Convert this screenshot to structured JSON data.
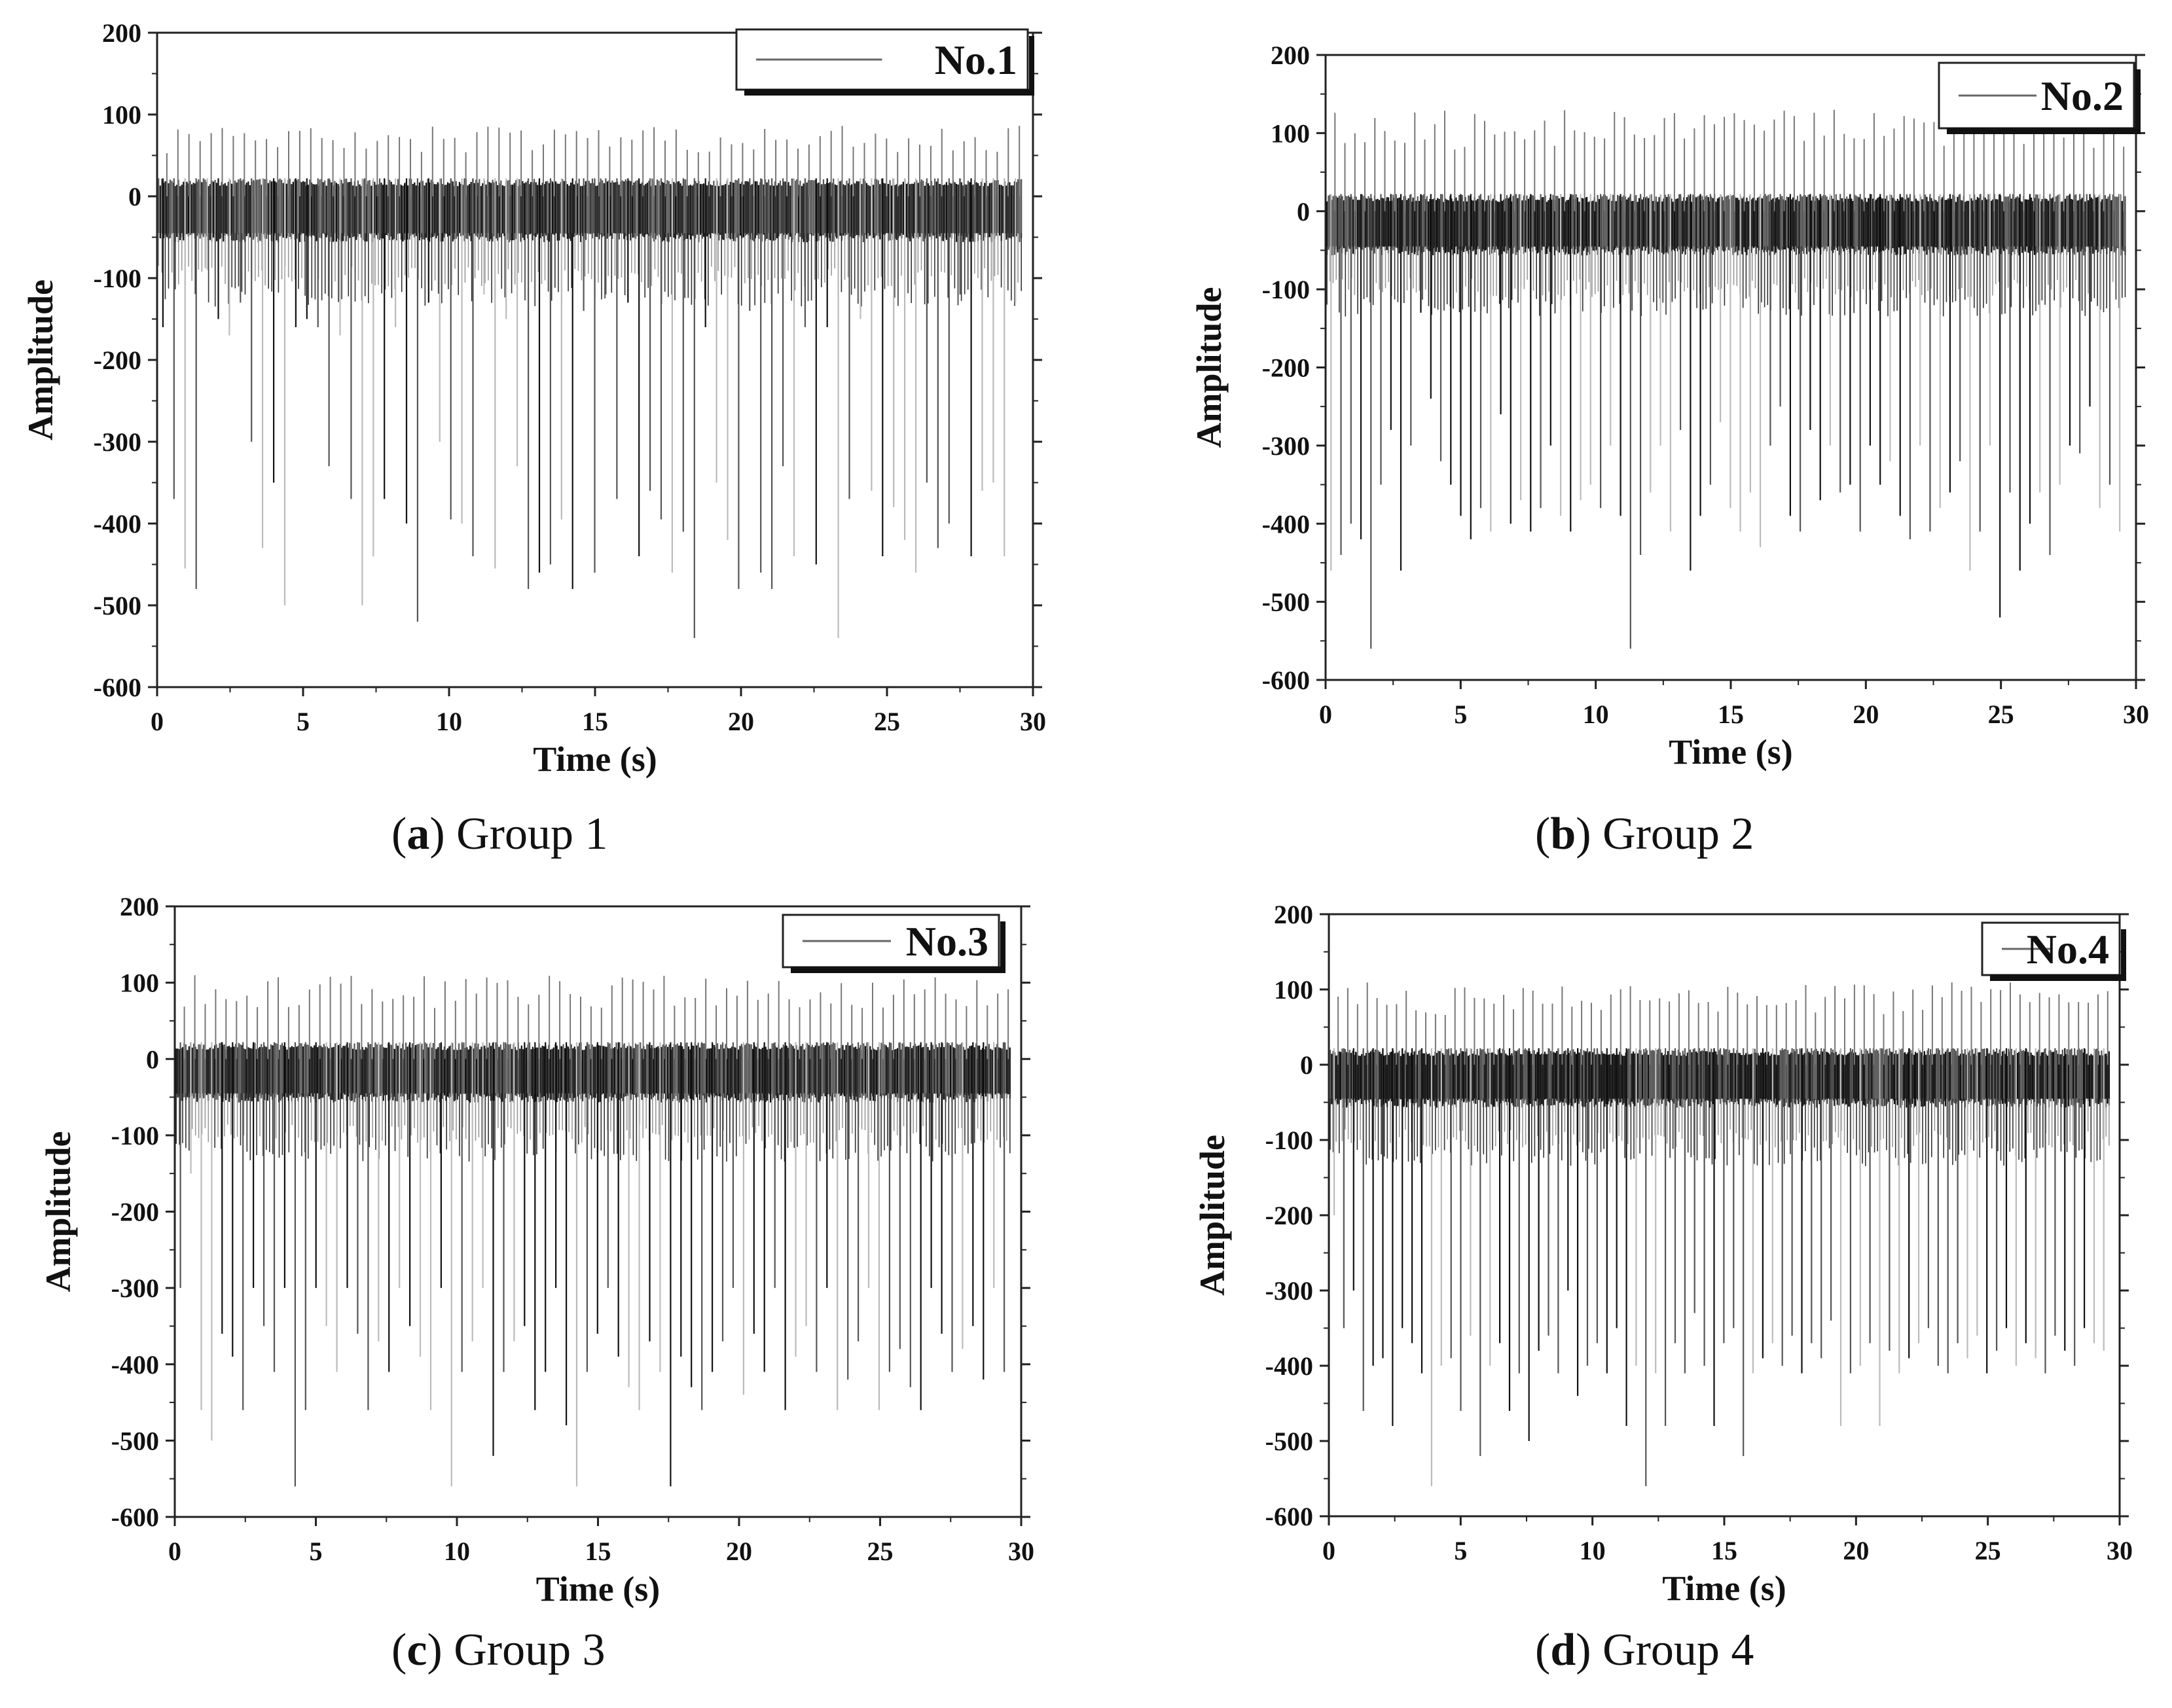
{
  "figure": {
    "panels": [
      {
        "id": "a",
        "caption_letter": "a",
        "caption_text": "Group 1",
        "chart_data": {
          "type": "line",
          "title": "",
          "legend": "No.1",
          "legend_position": "top-right",
          "xlabel": "Time (s)",
          "ylabel": "Amplitude",
          "xlim": [
            0,
            30
          ],
          "ylim": [
            -600,
            200
          ],
          "xticks": [
            "0",
            "5",
            "10",
            "15",
            "20",
            "25",
            "30"
          ],
          "yticks": [
            "200",
            "100",
            "0",
            "-100",
            "-200",
            "-300",
            "-400",
            "-500",
            "-600"
          ],
          "band": [
            -45,
            22
          ],
          "duration": 29.6,
          "spike_count": 78,
          "series": [
            {
              "name": "No.1",
              "positive_peak": 88,
              "negative_peaks": [
                -160,
                -370,
                -455,
                -480,
                -90,
                -150,
                -170,
                -130,
                -300,
                -430,
                -350,
                -500,
                -160,
                -150,
                -160,
                -330,
                -170,
                -370,
                -500,
                -440,
                -370,
                -160,
                -400,
                -520,
                -130,
                -300,
                -395,
                -400,
                -440,
                -120,
                -455,
                -150,
                -330,
                -480,
                -460,
                -450,
                -395,
                -480,
                -140,
                -460,
                -120,
                -370,
                -130,
                -440,
                -360,
                -395,
                -460,
                -410,
                -540,
                -160,
                -350,
                -420,
                -480,
                -140,
                -460,
                -480,
                -330,
                -440,
                -160,
                -450,
                -160,
                -540,
                -370,
                -150,
                -360,
                -440,
                -380,
                -420,
                -460,
                -350,
                -430,
                -400,
                -120,
                -440,
                -360,
                -350,
                -440,
                -130
              ]
            }
          ]
        }
      },
      {
        "id": "b",
        "caption_letter": "b",
        "caption_text": "Group 2",
        "chart_data": {
          "type": "line",
          "title": "",
          "legend": "No.2",
          "legend_position": "top-right",
          "xlabel": "Time (s)",
          "ylabel": "Amplitude",
          "xlim": [
            0,
            30
          ],
          "ylim": [
            -600,
            200
          ],
          "xticks": [
            "0",
            "5",
            "10",
            "15",
            "20",
            "25",
            "30"
          ],
          "yticks": [
            "200",
            "100",
            "0",
            "-100",
            "-200",
            "-300",
            "-400",
            "-500",
            "-600"
          ],
          "band": [
            -45,
            22
          ],
          "duration": 29.6,
          "spike_count": 80,
          "series": [
            {
              "name": "No.2",
              "positive_peak": 130,
              "negative_peaks": [
                -460,
                -440,
                -400,
                -420,
                -560,
                -350,
                -280,
                -460,
                -300,
                -130,
                -240,
                -320,
                -350,
                -390,
                -420,
                -380,
                -410,
                -260,
                -400,
                -370,
                -410,
                -380,
                -300,
                -390,
                -410,
                -370,
                -350,
                -380,
                -300,
                -390,
                -560,
                -440,
                -360,
                -300,
                -410,
                -280,
                -460,
                -390,
                -350,
                -270,
                -380,
                -410,
                -360,
                -430,
                -300,
                -250,
                -390,
                -410,
                -280,
                -370,
                -300,
                -360,
                -350,
                -410,
                -300,
                -350,
                -320,
                -390,
                -420,
                -300,
                -410,
                -380,
                -360,
                -320,
                -460,
                -410,
                -300,
                -520,
                -360,
                -460,
                -400,
                -360,
                -440,
                -350,
                -300,
                -310,
                -250,
                -380,
                -350,
                -410
              ]
            }
          ]
        }
      },
      {
        "id": "c",
        "caption_letter": "c",
        "caption_text": "Group 3",
        "chart_data": {
          "type": "line",
          "title": "",
          "legend": "No.3",
          "legend_position": "top-right",
          "xlabel": "Time (s)",
          "ylabel": "Amplitude",
          "xlim": [
            0,
            30
          ],
          "ylim": [
            -600,
            200
          ],
          "xticks": [
            "0",
            "5",
            "10",
            "15",
            "20",
            "25",
            "30"
          ],
          "yticks": [
            "200",
            "100",
            "0",
            "-100",
            "-200",
            "-300",
            "-400",
            "-500",
            "-600"
          ],
          "band": [
            -45,
            22
          ],
          "duration": 29.6,
          "spike_count": 80,
          "series": [
            {
              "name": "No.3",
              "positive_peak": 110,
              "negative_peaks": [
                -300,
                -150,
                -460,
                -500,
                -360,
                -390,
                -460,
                -300,
                -350,
                -410,
                -300,
                -560,
                -460,
                -300,
                -350,
                -410,
                -300,
                -360,
                -460,
                -370,
                -410,
                -300,
                -350,
                -390,
                -460,
                -300,
                -560,
                -410,
                -370,
                -300,
                -520,
                -410,
                -370,
                -350,
                -460,
                -410,
                -300,
                -480,
                -560,
                -410,
                -360,
                -300,
                -390,
                -430,
                -460,
                -370,
                -410,
                -560,
                -390,
                -430,
                -460,
                -410,
                -370,
                -300,
                -440,
                -360,
                -410,
                -300,
                -460,
                -390,
                -350,
                -410,
                -300,
                -460,
                -420,
                -370,
                -300,
                -460,
                -410,
                -380,
                -430,
                -460,
                -300,
                -360,
                -410,
                -380,
                -350,
                -420,
                -300,
                -410
              ]
            }
          ]
        }
      },
      {
        "id": "d",
        "caption_letter": "d",
        "caption_text": "Group 4",
        "chart_data": {
          "type": "line",
          "title": "",
          "legend": "No.4",
          "legend_position": "top-right",
          "xlabel": "Time (s)",
          "ylabel": "Amplitude",
          "xlim": [
            0,
            30
          ],
          "ylim": [
            -600,
            200
          ],
          "xticks": [
            "0",
            "5",
            "10",
            "15",
            "20",
            "25",
            "30"
          ],
          "yticks": [
            "200",
            "100",
            "0",
            "-100",
            "-200",
            "-300",
            "-400",
            "-500",
            "-600"
          ],
          "band": [
            -45,
            22
          ],
          "duration": 29.6,
          "spike_count": 80,
          "series": [
            {
              "name": "No.4",
              "positive_peak": 110,
              "negative_peaks": [
                -200,
                -350,
                -300,
                -460,
                -400,
                -390,
                -480,
                -350,
                -370,
                -410,
                -560,
                -400,
                -390,
                -460,
                -360,
                -520,
                -400,
                -370,
                -460,
                -410,
                -500,
                -380,
                -360,
                -410,
                -300,
                -440,
                -400,
                -370,
                -410,
                -350,
                -480,
                -400,
                -560,
                -410,
                -480,
                -370,
                -410,
                -330,
                -400,
                -480,
                -370,
                -350,
                -520,
                -410,
                -390,
                -370,
                -400,
                -360,
                -410,
                -370,
                -390,
                -340,
                -480,
                -410,
                -400,
                -370,
                -480,
                -380,
                -410,
                -390,
                -370,
                -350,
                -400,
                -410,
                -370,
                -390,
                -360,
                -410,
                -380,
                -350,
                -400,
                -370,
                -390,
                -410,
                -360,
                -380,
                -400,
                -350,
                -370,
                -380
              ]
            }
          ]
        }
      }
    ]
  }
}
